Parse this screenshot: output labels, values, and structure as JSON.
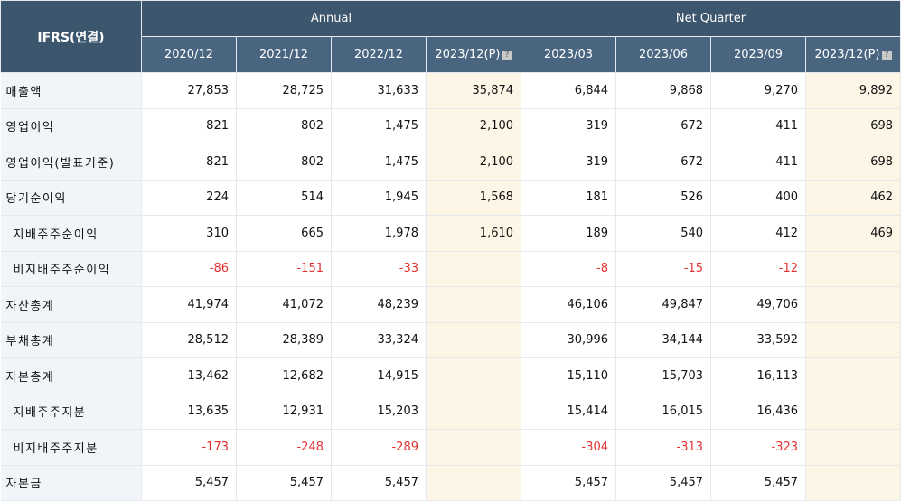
{
  "header": {
    "ifrs_label": "IFRS(연결)",
    "group_annual": "Annual",
    "group_quarter": "Net Quarter",
    "periods": [
      "2020/12",
      "2021/12",
      "2022/12",
      "2023/12(P)",
      "2023/03",
      "2023/06",
      "2023/09",
      "2023/12(P)"
    ],
    "help_icon": "?"
  },
  "rows": [
    {
      "label": "매출액",
      "values": [
        "27,853",
        "28,725",
        "31,633",
        "35,874",
        "6,844",
        "9,868",
        "9,270",
        "9,892"
      ]
    },
    {
      "label": "영업이익",
      "values": [
        "821",
        "802",
        "1,475",
        "2,100",
        "319",
        "672",
        "411",
        "698"
      ]
    },
    {
      "label": "영업이익(발표기준)",
      "values": [
        "821",
        "802",
        "1,475",
        "2,100",
        "319",
        "672",
        "411",
        "698"
      ]
    },
    {
      "label": "당기순이익",
      "values": [
        "224",
        "514",
        "1,945",
        "1,568",
        "181",
        "526",
        "400",
        "462"
      ]
    },
    {
      "label": "지배주주순이익",
      "values": [
        "310",
        "665",
        "1,978",
        "1,610",
        "189",
        "540",
        "412",
        "469"
      ]
    },
    {
      "label": "비지배주주순이익",
      "values": [
        "-86",
        "-151",
        "-33",
        "",
        "-8",
        "-15",
        "-12",
        ""
      ]
    },
    {
      "label": "자산총계",
      "values": [
        "41,974",
        "41,072",
        "48,239",
        "",
        "46,106",
        "49,847",
        "49,706",
        ""
      ]
    },
    {
      "label": "부채총계",
      "values": [
        "28,512",
        "28,389",
        "33,324",
        "",
        "30,996",
        "34,144",
        "33,592",
        ""
      ]
    },
    {
      "label": "자본총계",
      "values": [
        "13,462",
        "12,682",
        "14,915",
        "",
        "15,110",
        "15,703",
        "16,113",
        ""
      ]
    },
    {
      "label": "지배주주지분",
      "values": [
        "13,635",
        "12,931",
        "15,203",
        "",
        "15,414",
        "16,015",
        "16,436",
        ""
      ]
    },
    {
      "label": "비지배주주지분",
      "values": [
        "-173",
        "-248",
        "-289",
        "",
        "-304",
        "-313",
        "-323",
        ""
      ]
    },
    {
      "label": "자본금",
      "values": [
        "5,457",
        "5,457",
        "5,457",
        "",
        "5,457",
        "5,457",
        "5,457",
        ""
      ]
    }
  ],
  "colors": {
    "header_bg": "#3c566e",
    "label_bg": "#f1f4f8",
    "highlight_bg": "#fdf5e6",
    "negative": "#e53030"
  }
}
